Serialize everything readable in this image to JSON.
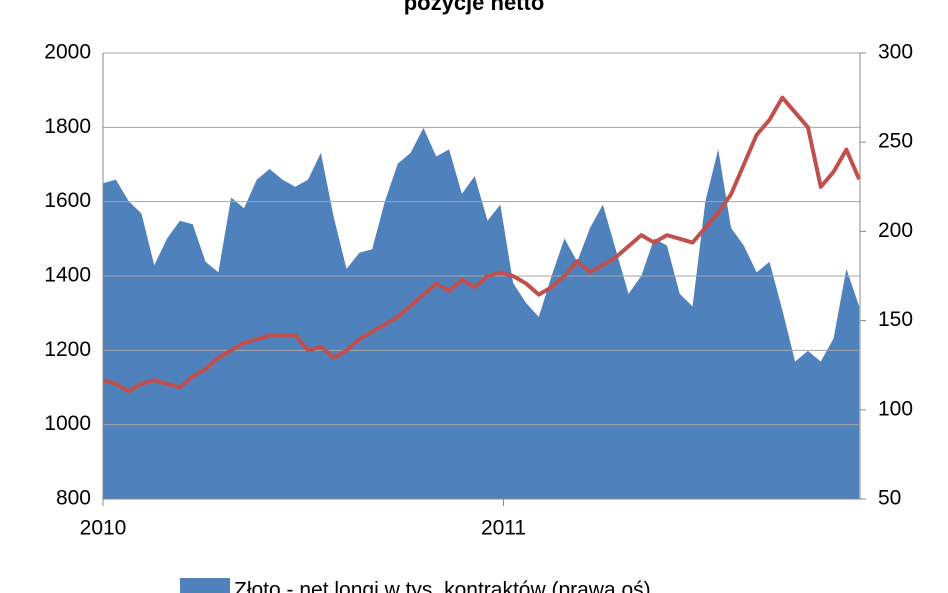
{
  "chart_data": {
    "type": "area-line",
    "title": "pozycje netto",
    "x": [
      2010.0,
      2010.032,
      2010.064,
      2010.096,
      2010.128,
      2010.16,
      2010.192,
      2010.224,
      2010.256,
      2010.288,
      2010.32,
      2010.352,
      2010.384,
      2010.416,
      2010.448,
      2010.48,
      2010.512,
      2010.544,
      2010.576,
      2010.608,
      2010.64,
      2010.672,
      2010.704,
      2010.736,
      2010.768,
      2010.8,
      2010.832,
      2010.864,
      2010.896,
      2010.928,
      2010.96,
      2010.992,
      2011.024,
      2011.056,
      2011.088,
      2011.12,
      2011.152,
      2011.184,
      2011.216,
      2011.248,
      2011.28,
      2011.312,
      2011.344,
      2011.376,
      2011.408,
      2011.44,
      2011.472,
      2011.504,
      2011.536,
      2011.568,
      2011.6,
      2011.632,
      2011.664,
      2011.696,
      2011.728,
      2011.76,
      2011.792,
      2011.824,
      2011.856,
      2011.888
    ],
    "xlim": [
      2010,
      2011.89
    ],
    "xticks": [
      2010,
      2011
    ],
    "ylim": [
      800,
      2000
    ],
    "yticks": [
      800,
      1000,
      1200,
      1400,
      1600,
      1800,
      2000
    ],
    "y2lim": [
      50,
      300
    ],
    "y2ticks": [
      50,
      100,
      150,
      200,
      250,
      300
    ],
    "grid": true,
    "series": [
      {
        "name": "Złoto - net longi w tys. kontraktów (prawa oś)",
        "kind": "area",
        "axis": "y2",
        "color": "#4f81bd",
        "values": [
          227,
          229,
          217,
          210,
          181,
          196,
          206,
          204,
          183,
          177,
          219,
          213,
          229,
          235,
          229,
          225,
          229,
          244,
          208,
          179,
          188,
          190,
          217,
          238,
          244,
          258,
          242,
          246,
          221,
          231,
          206,
          215,
          171,
          160,
          152,
          175,
          196,
          183,
          202,
          215,
          190,
          165,
          175,
          196,
          192,
          165,
          158,
          217,
          246,
          202,
          192,
          177,
          183,
          156,
          127,
          133,
          127,
          140,
          179,
          158
        ]
      },
      {
        "kind": "line",
        "axis": "y",
        "color": "#c0504d",
        "values": [
          1120,
          1110,
          1090,
          1110,
          1120,
          1110,
          1100,
          1130,
          1150,
          1180,
          1200,
          1220,
          1230,
          1240,
          1240,
          1240,
          1200,
          1210,
          1180,
          1200,
          1230,
          1250,
          1270,
          1290,
          1320,
          1350,
          1380,
          1360,
          1390,
          1370,
          1400,
          1410,
          1400,
          1380,
          1350,
          1370,
          1400,
          1440,
          1410,
          1430,
          1450,
          1480,
          1510,
          1490,
          1510,
          1500,
          1490,
          1530,
          1570,
          1620,
          1700,
          1780,
          1820,
          1880,
          1840,
          1800,
          1640,
          1680,
          1740,
          1660
        ]
      }
    ]
  }
}
